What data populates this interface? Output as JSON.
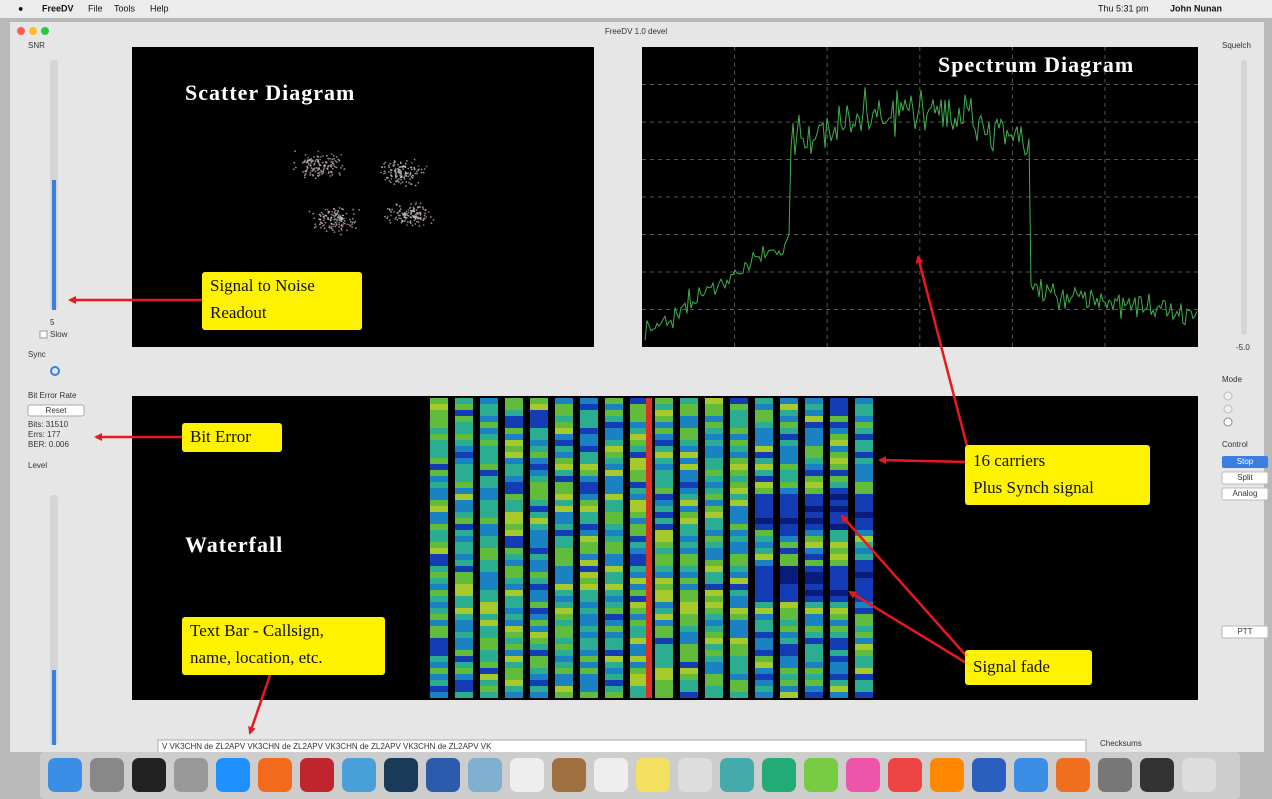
{
  "menu_bar": {
    "app": "FreeDV",
    "menus": [
      "File",
      "Tools",
      "Help"
    ],
    "clock": "Thu 5:31 pm",
    "user": "John Nunan"
  },
  "window": {
    "title": "FreeDV 1.0 devel"
  },
  "left_panel": {
    "snr_label": "SNR",
    "snr_value": "5",
    "slow": "Slow",
    "sync": "Sync",
    "ber_title": "Bit Error Rate",
    "reset": "Reset",
    "bits": "Bits: 31510",
    "errs": "Errs: 177",
    "ber": "BER: 0.006",
    "level": "Level"
  },
  "right_panel": {
    "squelch": "Squelch",
    "squelch_value": "-5.0",
    "mode": "Mode",
    "control": "Control",
    "buttons": [
      "Stop",
      "Split",
      "Analog"
    ],
    "ptt": "PTT"
  },
  "text_bar": {
    "text": "V VK3CHN de ZL2APV VK3CHN de ZL2APV VK3CHN de ZL2APV VK3CHN de ZL2APV VK",
    "checksums": "Checksums"
  },
  "annotations": {
    "scatter": "Scatter Diagram",
    "spectrum": "Spectrum Diagram",
    "waterfall": "Waterfall",
    "snr": [
      "Signal to Noise",
      "Readout"
    ],
    "bit_error": "Bit Error",
    "carriers": [
      "16 carriers",
      "Plus Synch signal"
    ],
    "text_bar": [
      "Text Bar - Callsign,",
      "name, location, etc."
    ],
    "fade": "Signal fade"
  }
}
